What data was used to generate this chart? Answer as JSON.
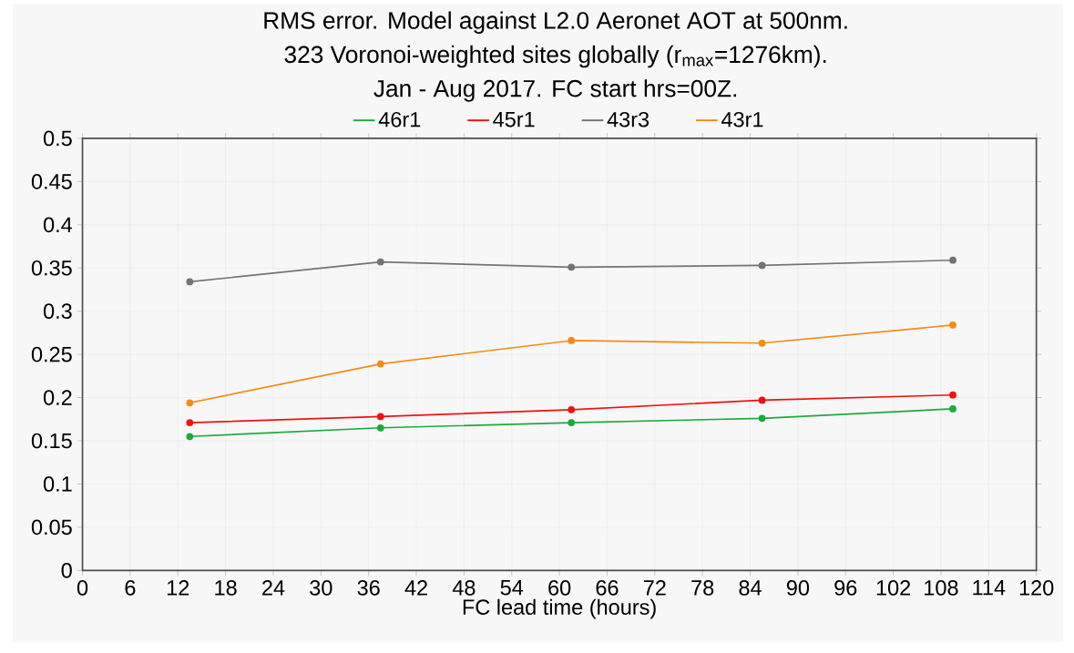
{
  "chart_data": {
    "type": "line",
    "title": "RMS error. Model against L2.0 Aeronet AOT at 500nm.",
    "subtitle": "323 Voronoi-weighted sites globally (r$_{max}$=1276km).\nJan - Aug 2017. FC start hrs=00Z.",
    "xlabel": "FC lead time (hours)",
    "x": [
      13.5,
      37.5,
      61.5,
      85.5,
      109.5
    ],
    "series": [
      {
        "name": "46r1",
        "color": "#1aab3c",
        "values": [
          0.155,
          0.165,
          0.171,
          0.176,
          0.187
        ]
      },
      {
        "name": "45r1",
        "color": "#f21010",
        "values": [
          0.171,
          0.178,
          0.186,
          0.197,
          0.203
        ]
      },
      {
        "name": "43r3",
        "color": "#737373",
        "values": [
          0.334,
          0.357,
          0.351,
          0.353,
          0.359
        ]
      },
      {
        "name": "43r1",
        "color": "#f58a14",
        "values": [
          0.194,
          0.239,
          0.266,
          0.263,
          0.284
        ]
      }
    ],
    "xlim": [
      0,
      120
    ],
    "xticks": [
      0,
      6,
      12,
      18,
      24,
      30,
      36,
      42,
      48,
      54,
      60,
      66,
      72,
      78,
      84,
      90,
      96,
      102,
      108,
      114,
      120
    ],
    "ylim": [
      0,
      0.5
    ],
    "yticks": [
      0,
      0.05,
      0.1,
      0.15,
      0.2,
      0.25,
      0.3,
      0.35,
      0.4,
      0.45,
      0.5
    ],
    "grid": true,
    "legend": "top",
    "marker": "circle",
    "line_style": "solid"
  }
}
